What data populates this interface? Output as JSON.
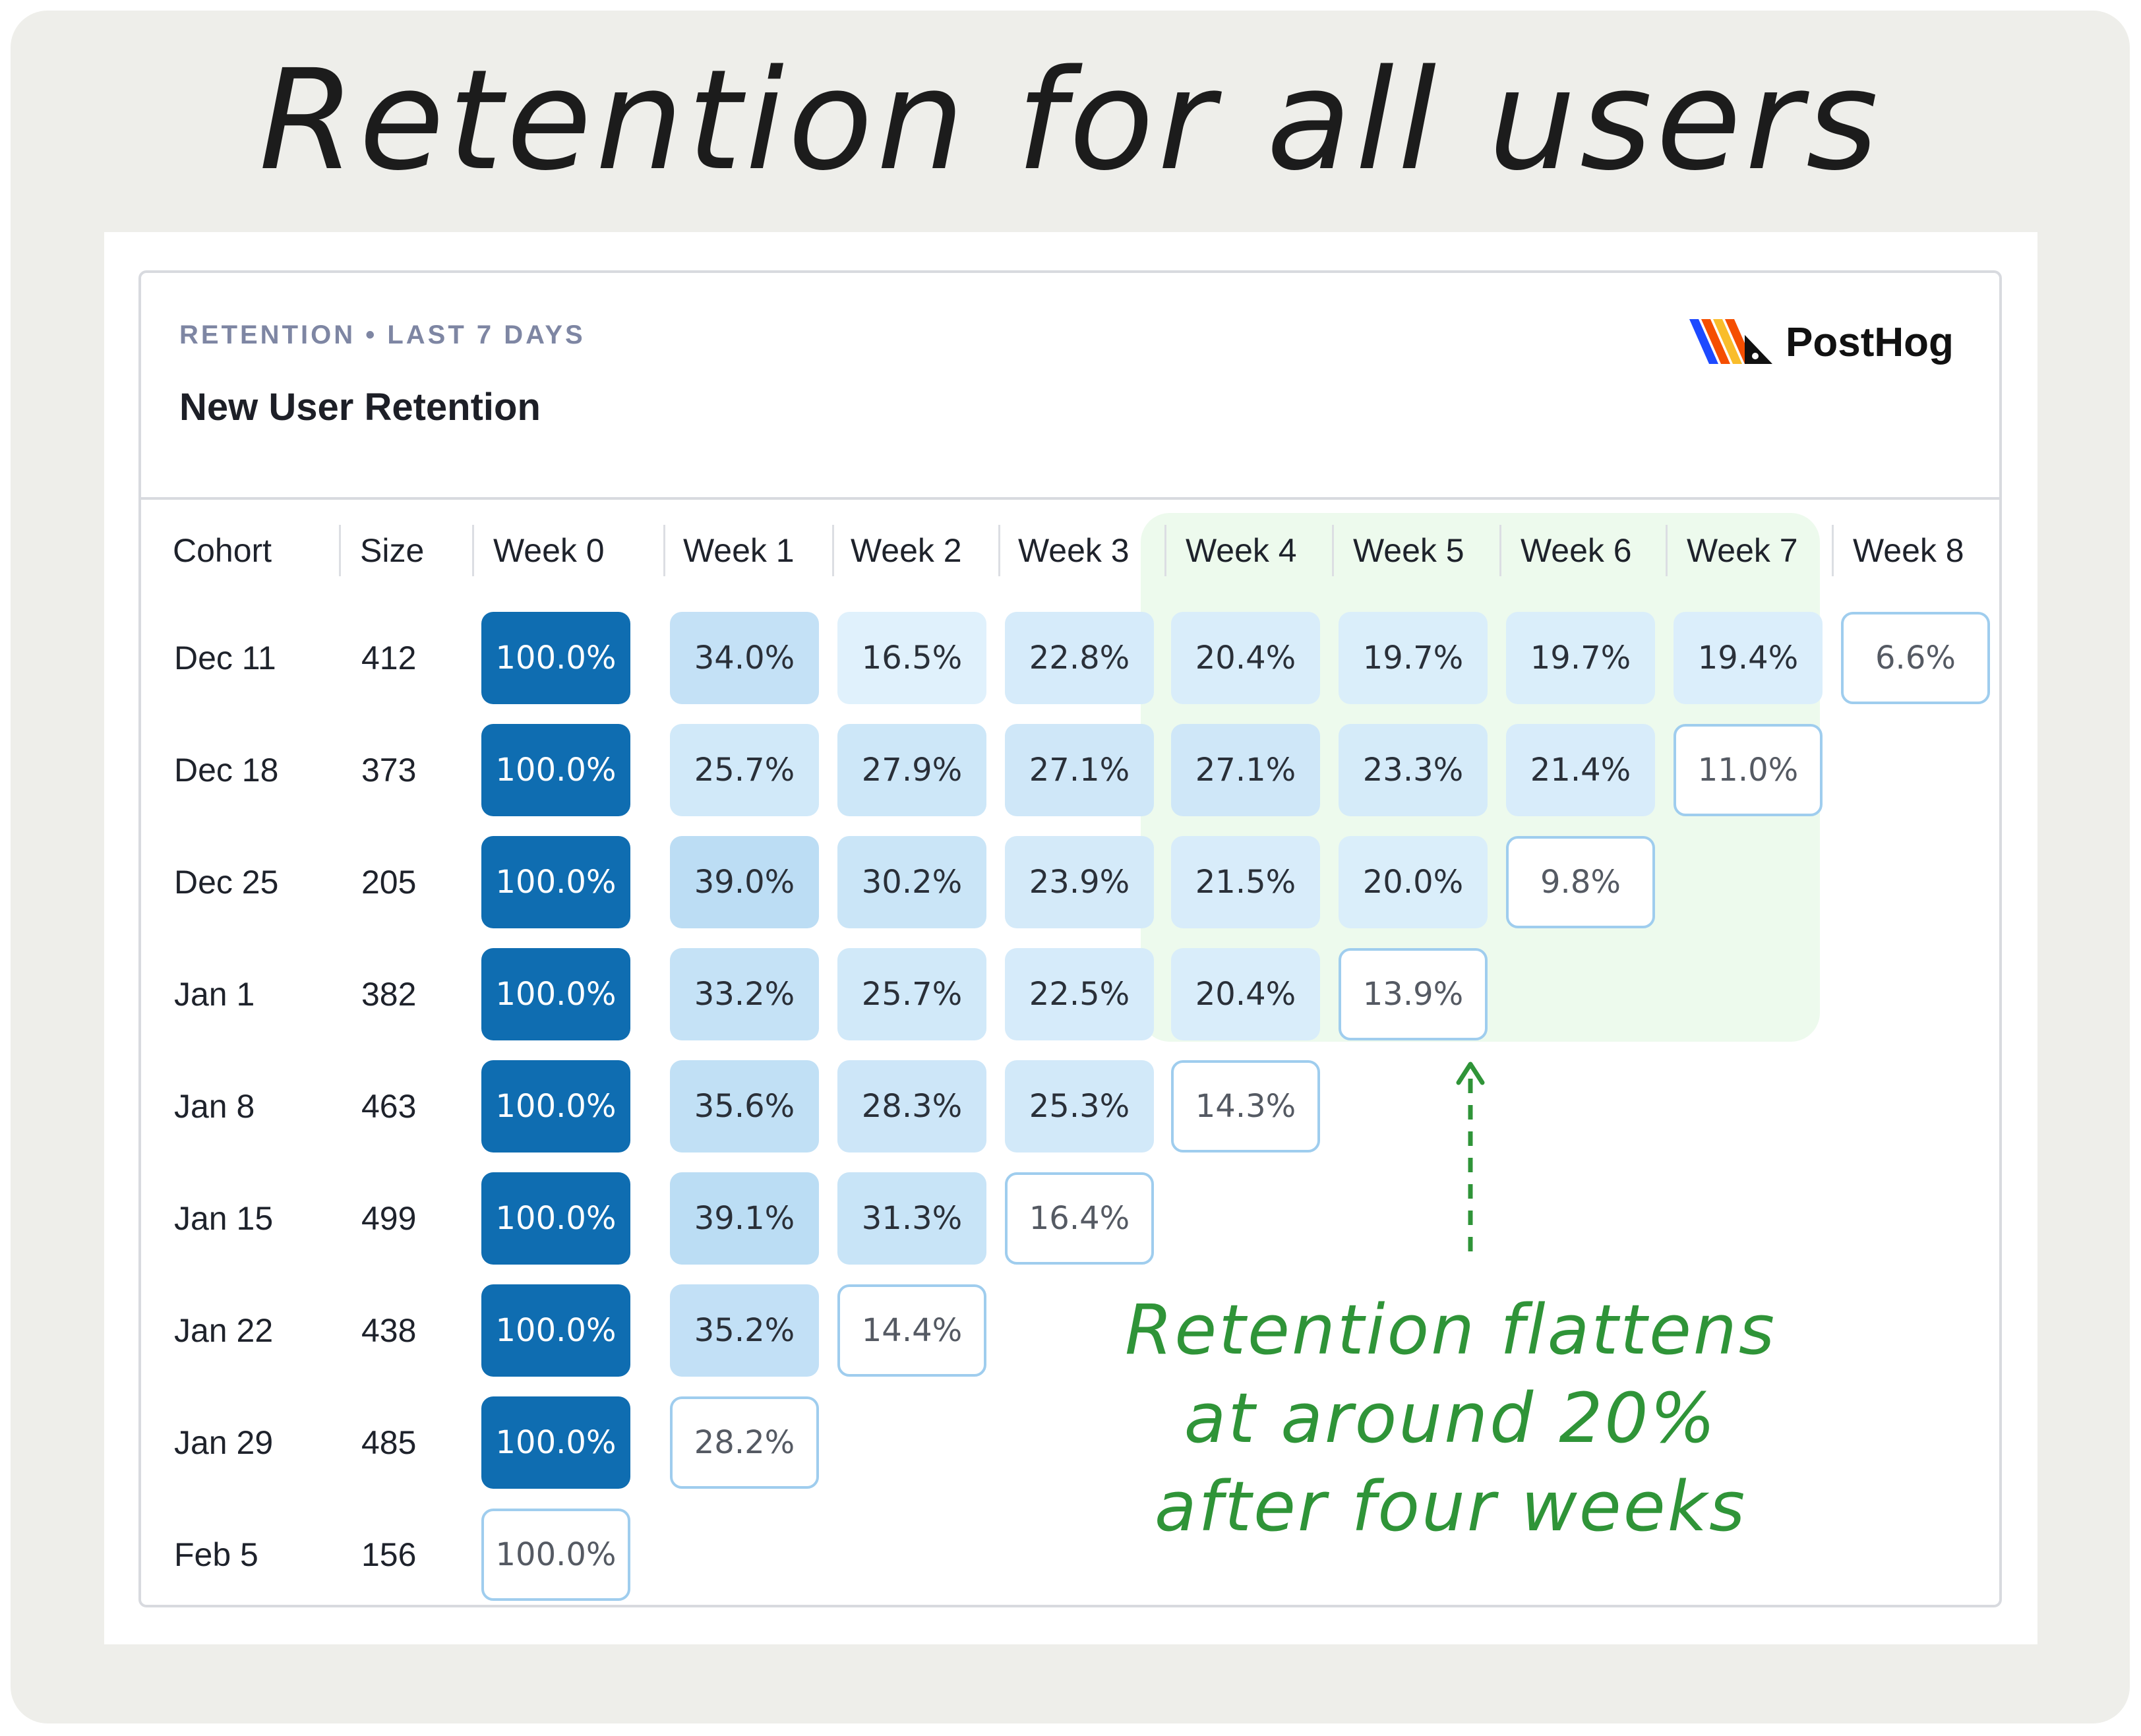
{
  "title": "Retention for all users",
  "card": {
    "eyebrow": "RETENTION • LAST 7 DAYS",
    "subtitle": "New User Retention",
    "brand": "PostHog"
  },
  "annotation": {
    "lines": [
      "Retention flattens",
      "at around 20%",
      "after four weeks"
    ],
    "color": "#2f9438"
  },
  "colors": {
    "full_cell": "#0f6db1",
    "light_cell": "#e3f2fc",
    "partial_border": "#9fcdee",
    "highlight": "#d8f3d8"
  },
  "chart_data": {
    "type": "table",
    "columns": [
      "Cohort",
      "Size",
      "Week 0",
      "Week 1",
      "Week 2",
      "Week 3",
      "Week 4",
      "Week 5",
      "Week 6",
      "Week 7",
      "Week 8"
    ],
    "highlighted_columns": [
      "Week 4",
      "Week 5",
      "Week 6",
      "Week 7"
    ],
    "rows": [
      {
        "cohort": "Dec 11",
        "size": "412",
        "values": [
          "100.0%",
          "34.0%",
          "16.5%",
          "22.8%",
          "20.4%",
          "19.7%",
          "19.7%",
          "19.4%",
          "6.6%"
        ]
      },
      {
        "cohort": "Dec 18",
        "size": "373",
        "values": [
          "100.0%",
          "25.7%",
          "27.9%",
          "27.1%",
          "27.1%",
          "23.3%",
          "21.4%",
          "11.0%"
        ]
      },
      {
        "cohort": "Dec 25",
        "size": "205",
        "values": [
          "100.0%",
          "39.0%",
          "30.2%",
          "23.9%",
          "21.5%",
          "20.0%",
          "9.8%"
        ]
      },
      {
        "cohort": "Jan 1",
        "size": "382",
        "values": [
          "100.0%",
          "33.2%",
          "25.7%",
          "22.5%",
          "20.4%",
          "13.9%"
        ]
      },
      {
        "cohort": "Jan 8",
        "size": "463",
        "values": [
          "100.0%",
          "35.6%",
          "28.3%",
          "25.3%",
          "14.3%"
        ]
      },
      {
        "cohort": "Jan 15",
        "size": "499",
        "values": [
          "100.0%",
          "39.1%",
          "31.3%",
          "16.4%"
        ]
      },
      {
        "cohort": "Jan 22",
        "size": "438",
        "values": [
          "100.0%",
          "35.2%",
          "14.4%"
        ]
      },
      {
        "cohort": "Jan 29",
        "size": "485",
        "values": [
          "100.0%",
          "28.2%"
        ]
      },
      {
        "cohort": "Feb 5",
        "size": "156",
        "values": [
          "100.0%"
        ]
      }
    ]
  }
}
